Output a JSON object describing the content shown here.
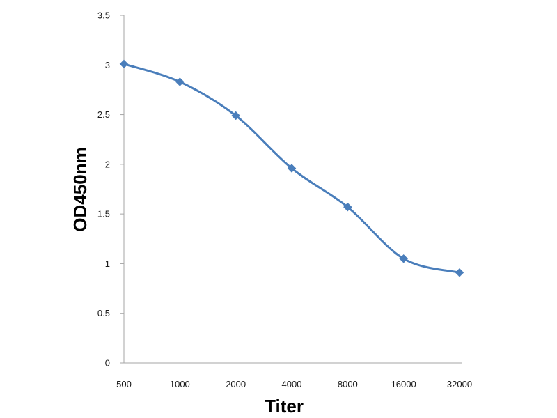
{
  "chart_data": {
    "type": "line",
    "title": "",
    "xlabel": "Titer",
    "ylabel": "OD450nm",
    "categories": [
      "500",
      "1000",
      "2000",
      "4000",
      "8000",
      "16000",
      "32000"
    ],
    "series": [
      {
        "values": [
          3.01,
          2.83,
          2.49,
          1.96,
          1.57,
          1.05,
          0.91
        ]
      }
    ],
    "ylim": [
      0,
      3.5
    ],
    "yticks": [
      "0",
      "0.5",
      "1",
      "1.5",
      "2",
      "2.5",
      "3",
      "3.5"
    ],
    "grid": false,
    "legend": "none",
    "smooth": true,
    "marker": "diamond",
    "colors": {
      "series": "#4a7ebb",
      "axis": "#a6a6a6",
      "border": "#c8c8c8"
    }
  }
}
